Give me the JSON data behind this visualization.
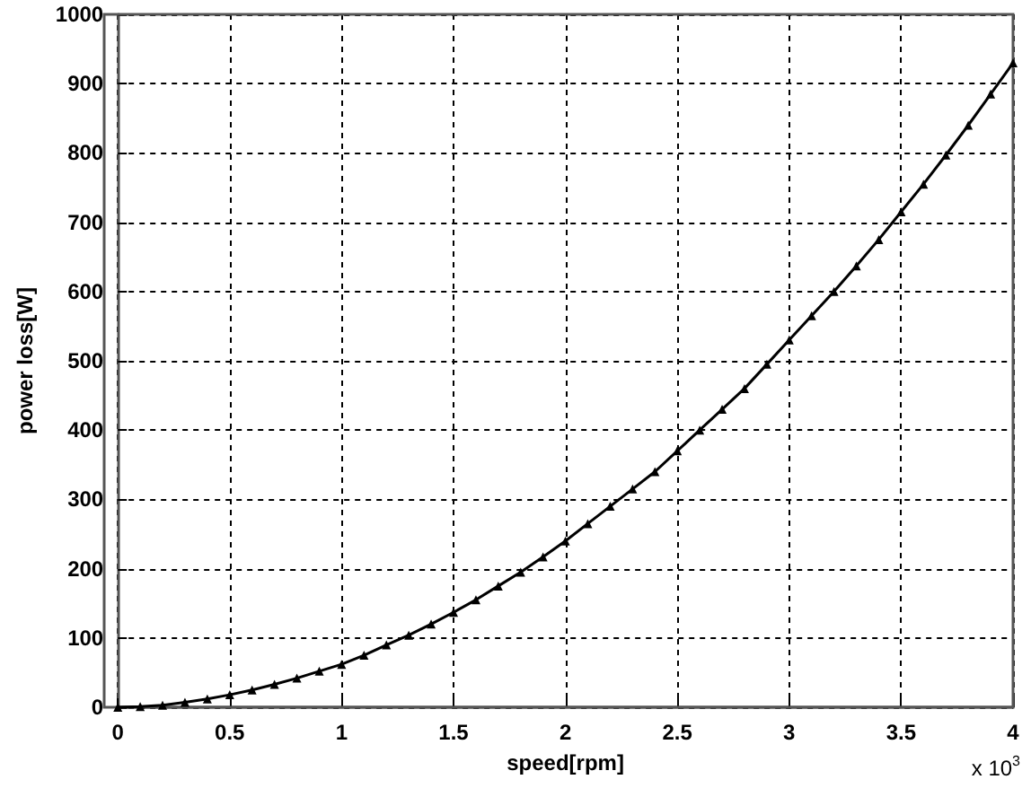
{
  "chart_data": {
    "type": "line",
    "xlabel": "speed[rpm]",
    "ylabel": "power loss[W]",
    "annotations": [
      "x 10$^{3}$"
    ],
    "x": [
      0,
      0.1,
      0.2,
      0.3,
      0.4,
      0.5,
      0.6,
      0.7,
      0.8,
      0.9,
      1.0,
      1.1,
      1.2,
      1.3,
      1.4,
      1.5,
      1.6,
      1.7,
      1.8,
      1.9,
      2.0,
      2.1,
      2.2,
      2.3,
      2.4,
      2.5,
      2.6,
      2.7,
      2.8,
      2.9,
      3.0,
      3.1,
      3.2,
      3.3,
      3.4,
      3.5,
      3.6,
      3.7,
      3.8,
      3.9,
      4.0
    ],
    "series": [
      {
        "color": "#000000",
        "values": [
          0,
          1,
          3,
          7,
          12,
          18,
          25,
          33,
          42,
          52,
          62,
          75,
          90,
          104,
          120,
          137,
          155,
          175,
          195,
          217,
          240,
          265,
          290,
          315,
          340,
          370,
          400,
          430,
          460,
          495,
          530,
          565,
          600,
          637,
          675,
          715,
          755,
          797,
          840,
          885,
          930
        ]
      }
    ],
    "xlim": [
      0,
      4
    ],
    "xticks": [
      0,
      0.5,
      1,
      1.5,
      2,
      2.5,
      3,
      3.5,
      4
    ],
    "ylim": [
      0,
      1000
    ],
    "yticks": [
      0,
      100,
      200,
      300,
      400,
      500,
      600,
      700,
      800,
      900,
      1000
    ],
    "grid": true,
    "marker": "triangle",
    "line_style": "solid"
  }
}
